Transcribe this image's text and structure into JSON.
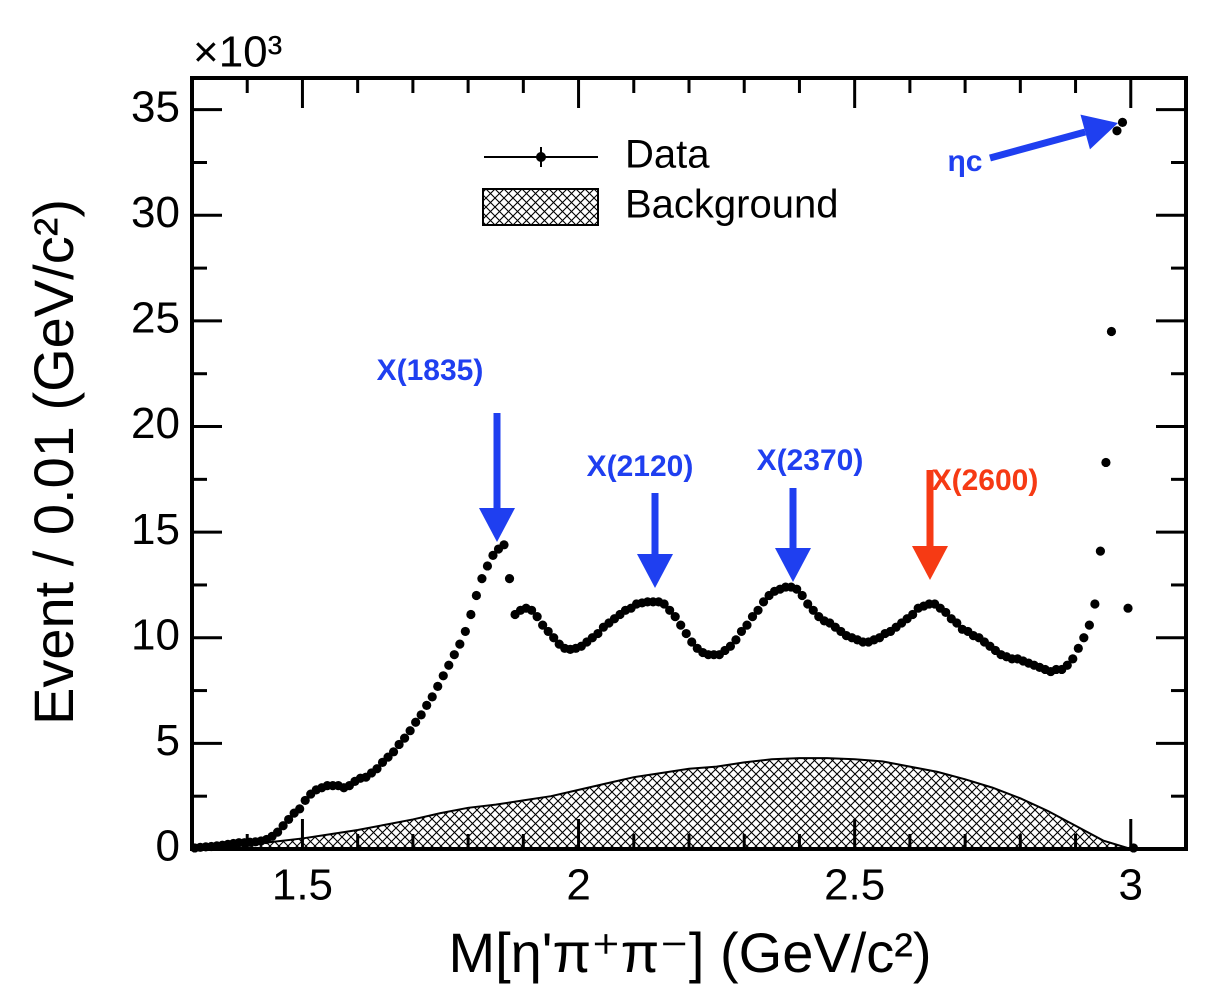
{
  "chart_data": {
    "type": "scatter",
    "y_multiplier": "×10³",
    "x_label": "M[η'π⁺π⁻] (GeV/c²)",
    "y_label": "Event / 0.01 (GeV/c²)",
    "xlim": [
      1.3,
      3.1
    ],
    "ylim": [
      0,
      36.5
    ],
    "xticks": [
      1.5,
      2,
      2.5,
      3
    ],
    "xminorticks": [
      1.4,
      1.6,
      1.7,
      1.8,
      1.9,
      2.1,
      2.2,
      2.3,
      2.4,
      2.6,
      2.7,
      2.8,
      2.9
    ],
    "yticks": [
      0,
      5,
      10,
      15,
      20,
      25,
      30,
      35
    ],
    "yminorticks": [
      2.5,
      7.5,
      12.5,
      17.5,
      22.5,
      27.5,
      32.5
    ],
    "legend_position": "top-center",
    "series": [
      {
        "name": "Data",
        "color": "#000000",
        "x": [
          1.305,
          1.315,
          1.325,
          1.335,
          1.345,
          1.355,
          1.365,
          1.375,
          1.385,
          1.395,
          1.405,
          1.415,
          1.425,
          1.435,
          1.445,
          1.455,
          1.465,
          1.475,
          1.485,
          1.495,
          1.505,
          1.515,
          1.525,
          1.535,
          1.545,
          1.555,
          1.565,
          1.575,
          1.585,
          1.595,
          1.605,
          1.615,
          1.625,
          1.635,
          1.645,
          1.655,
          1.665,
          1.675,
          1.685,
          1.695,
          1.705,
          1.715,
          1.725,
          1.735,
          1.745,
          1.755,
          1.765,
          1.775,
          1.785,
          1.795,
          1.805,
          1.815,
          1.825,
          1.835,
          1.845,
          1.855,
          1.865,
          1.875,
          1.885,
          1.895,
          1.905,
          1.915,
          1.925,
          1.935,
          1.945,
          1.955,
          1.965,
          1.975,
          1.985,
          1.995,
          2.005,
          2.015,
          2.025,
          2.035,
          2.045,
          2.055,
          2.065,
          2.075,
          2.085,
          2.095,
          2.105,
          2.115,
          2.125,
          2.135,
          2.145,
          2.155,
          2.165,
          2.175,
          2.185,
          2.195,
          2.205,
          2.215,
          2.225,
          2.235,
          2.245,
          2.255,
          2.265,
          2.275,
          2.285,
          2.295,
          2.305,
          2.315,
          2.325,
          2.335,
          2.345,
          2.355,
          2.365,
          2.375,
          2.385,
          2.395,
          2.405,
          2.415,
          2.425,
          2.435,
          2.445,
          2.455,
          2.465,
          2.475,
          2.485,
          2.495,
          2.505,
          2.515,
          2.525,
          2.535,
          2.545,
          2.555,
          2.565,
          2.575,
          2.585,
          2.595,
          2.605,
          2.615,
          2.625,
          2.635,
          2.645,
          2.655,
          2.665,
          2.675,
          2.685,
          2.695,
          2.705,
          2.715,
          2.725,
          2.735,
          2.745,
          2.755,
          2.765,
          2.775,
          2.785,
          2.795,
          2.805,
          2.815,
          2.825,
          2.835,
          2.845,
          2.855,
          2.865,
          2.875,
          2.885,
          2.895,
          2.905,
          2.915,
          2.925,
          2.935,
          2.945,
          2.955,
          2.965,
          2.975,
          2.985,
          2.995,
          3.005
        ],
        "values": [
          0.05,
          0.08,
          0.1,
          0.12,
          0.15,
          0.18,
          0.22,
          0.26,
          0.3,
          0.3,
          0.32,
          0.34,
          0.38,
          0.45,
          0.6,
          0.8,
          1.1,
          1.4,
          1.7,
          1.9,
          2.3,
          2.6,
          2.8,
          2.9,
          3.0,
          3.0,
          3.0,
          2.9,
          3.0,
          3.2,
          3.35,
          3.4,
          3.6,
          3.8,
          4.1,
          4.35,
          4.6,
          4.95,
          5.25,
          5.6,
          6.0,
          6.35,
          6.8,
          7.2,
          7.7,
          8.2,
          8.7,
          9.2,
          9.7,
          10.3,
          11.1,
          12.0,
          12.8,
          13.4,
          13.9,
          14.2,
          14.4,
          12.8,
          11.1,
          11.3,
          11.4,
          11.3,
          11.0,
          10.6,
          10.3,
          10.0,
          9.7,
          9.5,
          9.45,
          9.5,
          9.6,
          9.8,
          10.0,
          10.2,
          10.5,
          10.7,
          10.9,
          11.1,
          11.3,
          11.4,
          11.6,
          11.65,
          11.7,
          11.7,
          11.7,
          11.6,
          11.3,
          11.0,
          10.6,
          10.2,
          9.8,
          9.5,
          9.3,
          9.2,
          9.2,
          9.2,
          9.4,
          9.6,
          9.9,
          10.3,
          10.6,
          11.0,
          11.3,
          11.7,
          12.0,
          12.2,
          12.3,
          12.4,
          12.4,
          12.3,
          12.0,
          11.6,
          11.3,
          11.0,
          10.8,
          10.7,
          10.5,
          10.3,
          10.1,
          10.0,
          9.9,
          9.8,
          9.8,
          9.9,
          10.0,
          10.2,
          10.3,
          10.5,
          10.7,
          10.9,
          11.1,
          11.4,
          11.5,
          11.6,
          11.6,
          11.4,
          11.2,
          10.9,
          10.7,
          10.4,
          10.3,
          10.1,
          10.0,
          9.8,
          9.6,
          9.4,
          9.2,
          9.1,
          9.0,
          9.0,
          8.9,
          8.8,
          8.7,
          8.6,
          8.5,
          8.4,
          8.5,
          8.5,
          8.7,
          9.0,
          9.5,
          10.0,
          10.6,
          11.6,
          14.1,
          18.3,
          24.5,
          34.0,
          34.4,
          11.4,
          0.05
        ]
      },
      {
        "name": "Background",
        "type": "area",
        "hatch": "crosshatch",
        "color": "#000000",
        "x": [
          1.3,
          1.35,
          1.4,
          1.45,
          1.5,
          1.55,
          1.6,
          1.65,
          1.7,
          1.75,
          1.8,
          1.85,
          1.9,
          1.95,
          2.0,
          2.05,
          2.1,
          2.15,
          2.2,
          2.25,
          2.3,
          2.35,
          2.4,
          2.45,
          2.5,
          2.55,
          2.6,
          2.65,
          2.7,
          2.75,
          2.8,
          2.85,
          2.9,
          2.95,
          3.0
        ],
        "values": [
          0,
          0.05,
          0.2,
          0.35,
          0.5,
          0.7,
          0.9,
          1.15,
          1.4,
          1.7,
          1.95,
          2.1,
          2.3,
          2.5,
          2.8,
          3.1,
          3.4,
          3.6,
          3.8,
          3.9,
          4.1,
          4.25,
          4.3,
          4.3,
          4.25,
          4.15,
          3.9,
          3.65,
          3.3,
          2.9,
          2.4,
          1.8,
          1.1,
          0.4,
          0
        ]
      }
    ],
    "annotations": [
      {
        "text": "X(1835)",
        "color": "#1f3ff0"
      },
      {
        "text": "X(2120)",
        "color": "#1f3ff0"
      },
      {
        "text": "X(2370)",
        "color": "#1f3ff0"
      },
      {
        "text": "X(2600)",
        "color": "#f63a14"
      },
      {
        "text": "ηc",
        "color": "#1f3ff0"
      }
    ]
  }
}
